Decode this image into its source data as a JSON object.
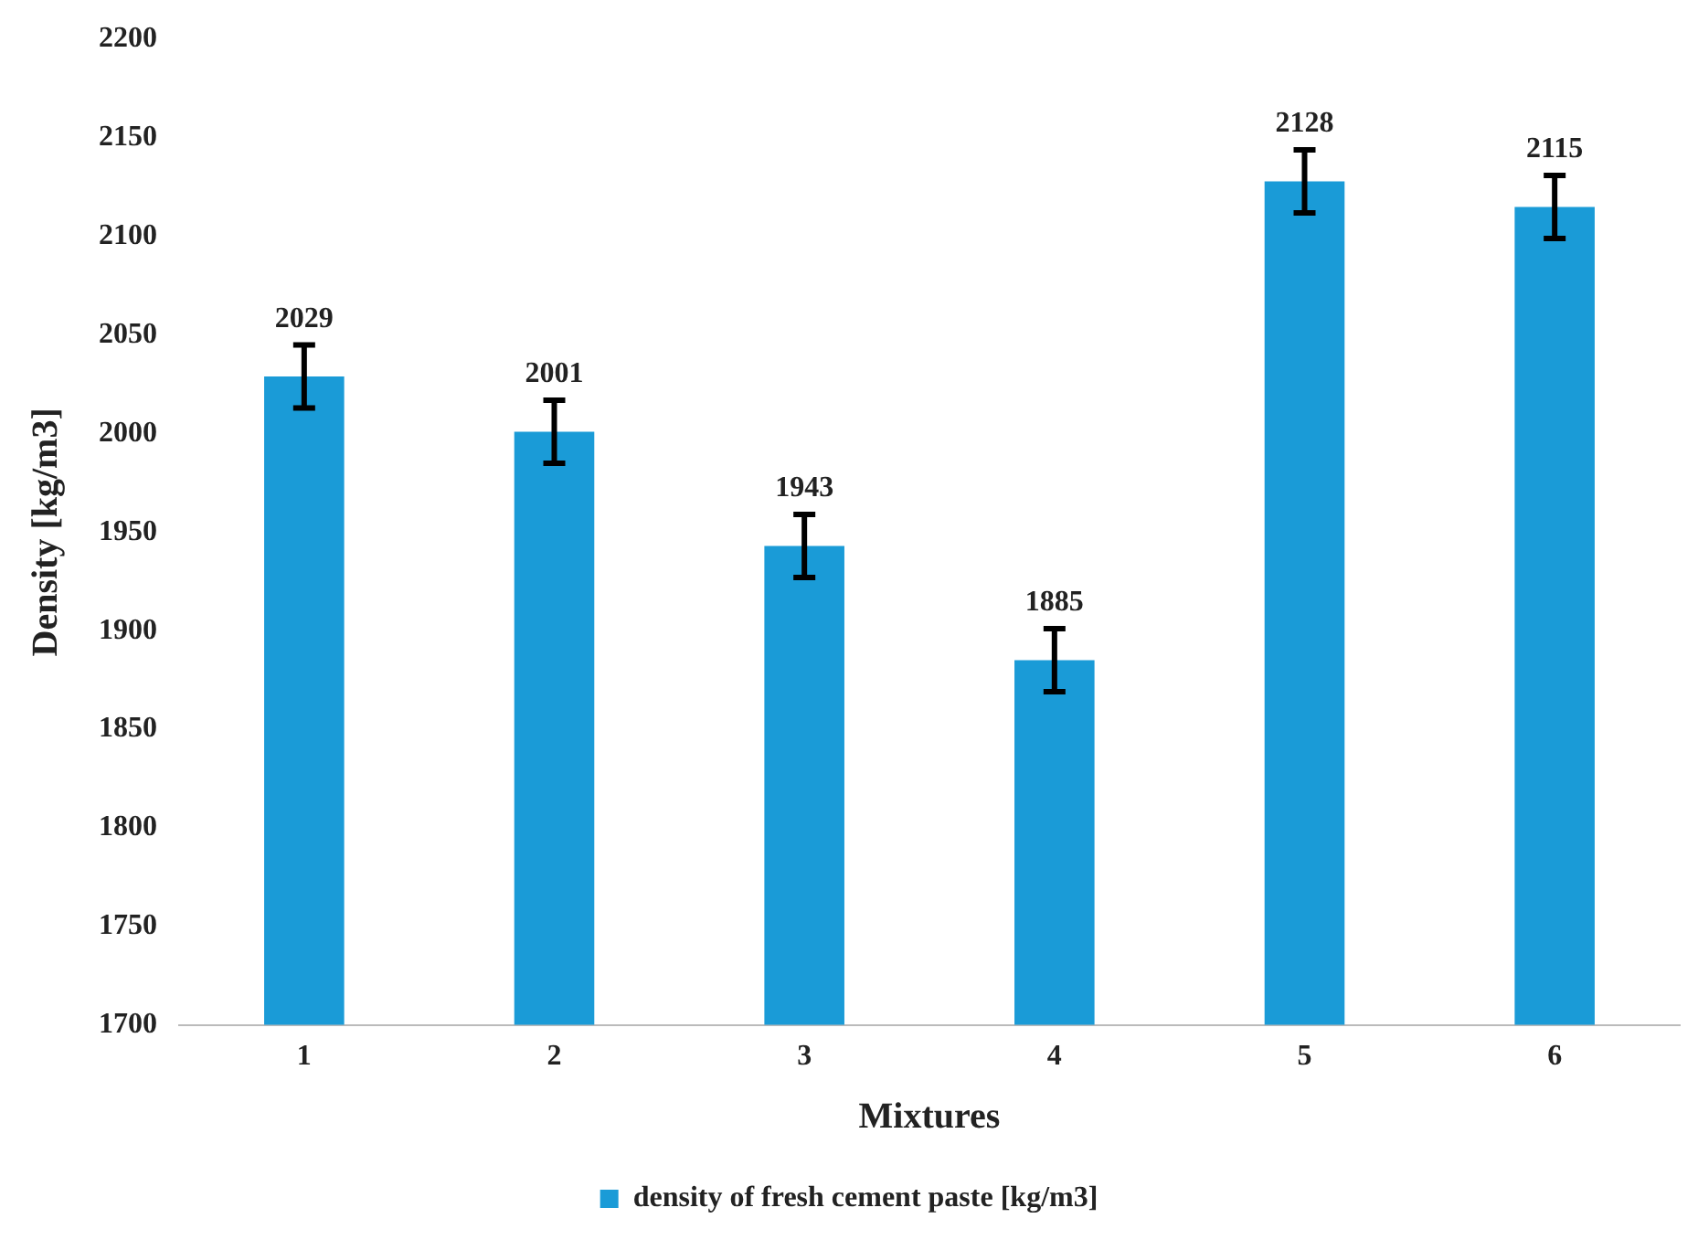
{
  "chart_data": {
    "type": "bar",
    "xlabel": "Mixtures",
    "ylabel": "Density [kg/m3]",
    "categories": [
      "1",
      "2",
      "3",
      "4",
      "5",
      "6"
    ],
    "series": [
      {
        "name": "density of fresh cement paste [kg/m3]",
        "color": "#1a9bd7",
        "values": [
          2029,
          2001,
          1943,
          1885,
          2128,
          2115
        ],
        "errors": [
          16,
          16,
          16,
          16,
          16,
          16
        ]
      }
    ],
    "ylim": [
      1700,
      2200
    ],
    "yticks": [
      1700,
      1750,
      1800,
      1850,
      1900,
      1950,
      2000,
      2050,
      2100,
      2150,
      2200
    ],
    "grid": false,
    "legend": "bottom",
    "data_labels": true
  }
}
